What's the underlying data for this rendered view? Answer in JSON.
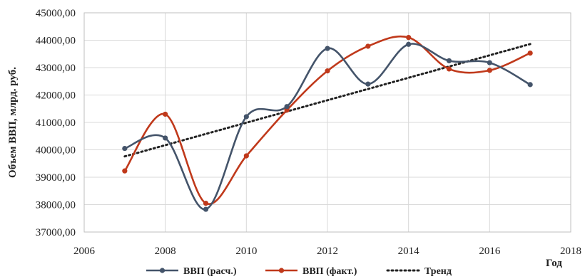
{
  "chart_data": {
    "type": "line",
    "xlabel": "Год",
    "ylabel": "Объем ВВП, млрд. руб.",
    "xlim": [
      2006,
      2018
    ],
    "ylim": [
      37000,
      45000
    ],
    "x_ticks": [
      2006,
      2008,
      2010,
      2012,
      2014,
      2016,
      2018
    ],
    "x_tick_labels": [
      "2006",
      "2008",
      "2010",
      "2012",
      "2014",
      "2016",
      "2018"
    ],
    "y_ticks": [
      37000,
      38000,
      39000,
      40000,
      41000,
      42000,
      43000,
      44000,
      45000
    ],
    "y_tick_labels": [
      "37000,00",
      "38000,00",
      "39000,00",
      "40000,00",
      "41000,00",
      "42000,00",
      "43000,00",
      "44000,00",
      "45000,00"
    ],
    "grid": true,
    "legend_position": "bottom",
    "series": [
      {
        "name": "ВВП (расч.)",
        "color": "#44546A",
        "style": "smooth-line-markers",
        "x": [
          2007,
          2008,
          2009,
          2010,
          2011,
          2012,
          2013,
          2014,
          2015,
          2016,
          2017
        ],
        "y": [
          40050,
          40430,
          37830,
          41210,
          41580,
          43700,
          42400,
          43850,
          43250,
          43180,
          42380
        ]
      },
      {
        "name": "ВВП (факт.)",
        "color": "#C0391B",
        "style": "smooth-line-markers",
        "x": [
          2007,
          2008,
          2009,
          2010,
          2011,
          2012,
          2013,
          2014,
          2015,
          2016,
          2017
        ],
        "y": [
          39230,
          41300,
          38050,
          39780,
          41450,
          42880,
          43780,
          44100,
          42950,
          42900,
          43530
        ]
      },
      {
        "name": "Тренд",
        "color": "#222222",
        "style": "dotted-linear",
        "x": [
          2007,
          2017
        ],
        "y": [
          39760,
          43860
        ]
      }
    ]
  }
}
